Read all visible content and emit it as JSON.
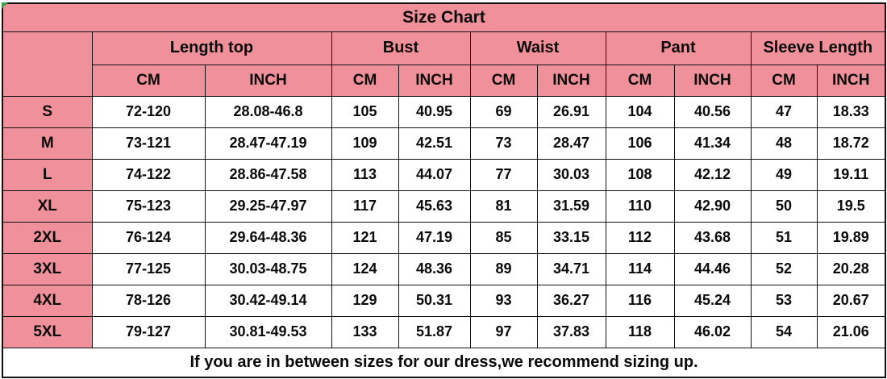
{
  "colors": {
    "header_pink": "#f0909b",
    "border_black": "#111111",
    "cell_white": "#ffffff",
    "corner_marker_green": "#3f9e46"
  },
  "chart_data": {
    "type": "table",
    "title": "Size Chart",
    "size_column_header": "",
    "columns": [
      {
        "label": "Length top",
        "sub": [
          "CM",
          "INCH"
        ]
      },
      {
        "label": "Bust",
        "sub": [
          "CM",
          "INCH"
        ]
      },
      {
        "label": "Waist",
        "sub": [
          "CM",
          "INCH"
        ]
      },
      {
        "label": "Pant",
        "sub": [
          "CM",
          "INCH"
        ]
      },
      {
        "label": "Sleeve Length",
        "sub": [
          "CM",
          "INCH"
        ]
      }
    ],
    "rows": [
      {
        "size": "S",
        "values": [
          "72-120",
          "28.08-46.8",
          "105",
          "40.95",
          "69",
          "26.91",
          "104",
          "40.56",
          "47",
          "18.33"
        ]
      },
      {
        "size": "M",
        "values": [
          "73-121",
          "28.47-47.19",
          "109",
          "42.51",
          "73",
          "28.47",
          "106",
          "41.34",
          "48",
          "18.72"
        ]
      },
      {
        "size": "L",
        "values": [
          "74-122",
          "28.86-47.58",
          "113",
          "44.07",
          "77",
          "30.03",
          "108",
          "42.12",
          "49",
          "19.11"
        ]
      },
      {
        "size": "XL",
        "values": [
          "75-123",
          "29.25-47.97",
          "117",
          "45.63",
          "81",
          "31.59",
          "110",
          "42.90",
          "50",
          "19.5"
        ]
      },
      {
        "size": "2XL",
        "values": [
          "76-124",
          "29.64-48.36",
          "121",
          "47.19",
          "85",
          "33.15",
          "112",
          "43.68",
          "51",
          "19.89"
        ]
      },
      {
        "size": "3XL",
        "values": [
          "77-125",
          "30.03-48.75",
          "124",
          "48.36",
          "89",
          "34.71",
          "114",
          "44.46",
          "52",
          "20.28"
        ]
      },
      {
        "size": "4XL",
        "values": [
          "78-126",
          "30.42-49.14",
          "129",
          "50.31",
          "93",
          "36.27",
          "116",
          "45.24",
          "53",
          "20.67"
        ]
      },
      {
        "size": "5XL",
        "values": [
          "79-127",
          "30.81-49.53",
          "133",
          "51.87",
          "97",
          "37.83",
          "118",
          "46.02",
          "54",
          "21.06"
        ]
      }
    ],
    "footer_note": "If you are in between sizes for our dress,we recommend sizing up."
  }
}
